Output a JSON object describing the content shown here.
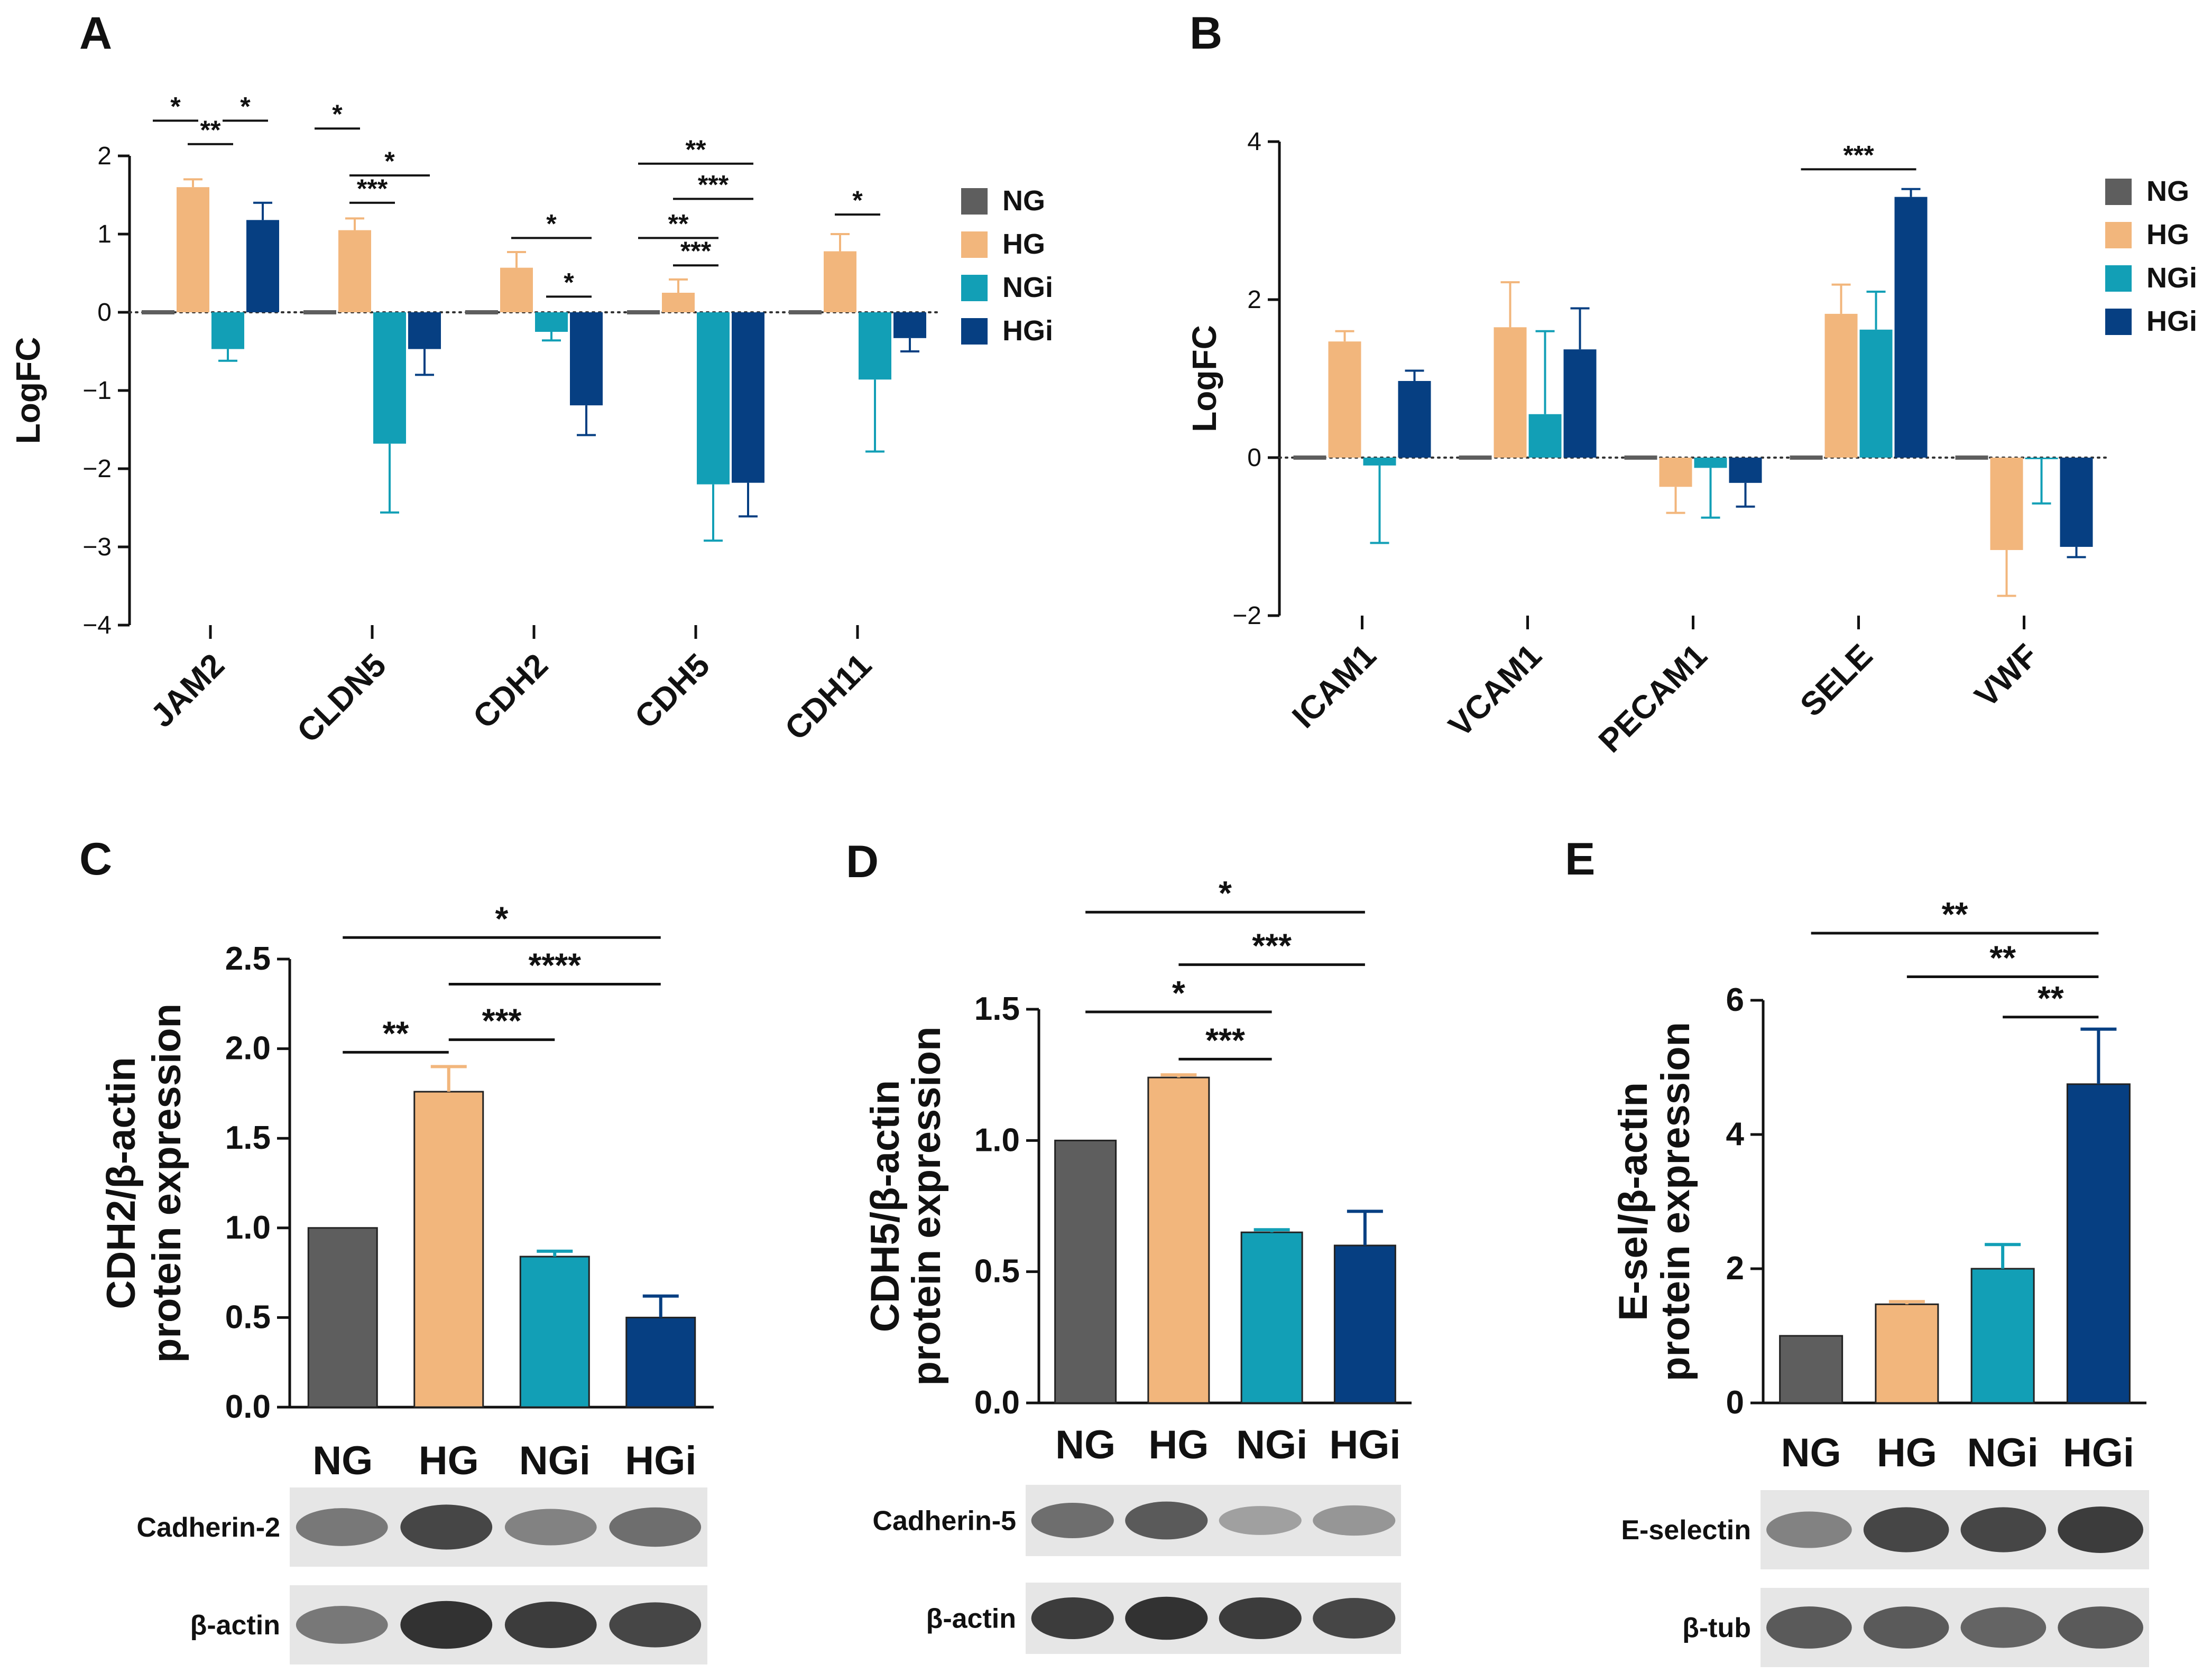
{
  "colors": {
    "NG": "#5e5e5e",
    "HG": "#f2b67c",
    "NGi": "#129fb6",
    "HGi": "#063f82"
  },
  "panels": {
    "A": {
      "letter": "A",
      "chart_data": {
        "type": "bar",
        "ylabel": "LogFC",
        "ylim": [
          -4,
          2
        ],
        "yticks": [
          2,
          1,
          0,
          -1,
          -2,
          -3,
          -4
        ],
        "yticklabels": [
          "2",
          "1",
          "0",
          "−1",
          "−2",
          "−3",
          "−4"
        ],
        "categories": [
          "JAM2",
          "CLDN5",
          "CDH2",
          "CDH5",
          "CDH11"
        ],
        "legend_position": "right",
        "series": [
          {
            "name": "NG",
            "values": [
              0,
              0,
              0,
              0,
              0
            ],
            "errors": [
              0,
              0,
              0,
              0,
              0
            ]
          },
          {
            "name": "HG",
            "values": [
              1.6,
              1.05,
              0.57,
              0.25,
              0.78
            ],
            "errors": [
              0.1,
              0.15,
              0.2,
              0.17,
              0.22
            ]
          },
          {
            "name": "NGi",
            "values": [
              -0.47,
              -1.68,
              -0.25,
              -2.2,
              -0.86
            ],
            "errors": [
              0.15,
              0.88,
              0.11,
              0.72,
              0.92
            ]
          },
          {
            "name": "HGi",
            "values": [
              1.18,
              -0.47,
              -1.19,
              -2.18,
              -0.33
            ],
            "errors": [
              0.22,
              0.33,
              0.38,
              0.43,
              0.17
            ]
          }
        ],
        "significance": [
          {
            "cat": 0,
            "from": 0,
            "to": 1,
            "label": "*",
            "y": 2.45
          },
          {
            "cat": 0,
            "from": 1,
            "to": 2,
            "label": "**",
            "y": 2.15
          },
          {
            "cat": 0,
            "from": 2,
            "to": 3,
            "label": "*",
            "y": 2.45
          },
          {
            "cat": 1,
            "from": 0,
            "to": 1,
            "label": "*",
            "y": 2.35
          },
          {
            "cat": 1,
            "from": 1,
            "to": 3,
            "label": "*",
            "y": 1.75
          },
          {
            "cat": 1,
            "from": 1,
            "to": 2,
            "label": "***",
            "y": 1.4
          },
          {
            "cat": 2,
            "from": 1,
            "to": 3,
            "label": "*",
            "y": 0.95
          },
          {
            "cat": 2,
            "from": 2,
            "to": 3,
            "label": "*",
            "y": 0.2
          },
          {
            "cat": 3,
            "from": 0,
            "to": 3,
            "label": "**",
            "y": 1.9
          },
          {
            "cat": 3,
            "from": 1,
            "to": 3,
            "label": "***",
            "y": 1.45
          },
          {
            "cat": 3,
            "from": 0,
            "to": 2,
            "label": "**",
            "y": 0.95
          },
          {
            "cat": 3,
            "from": 1,
            "to": 2,
            "label": "***",
            "y": 0.6
          },
          {
            "cat": 4,
            "from": 1,
            "to": 2,
            "label": "*",
            "y": 1.25
          }
        ]
      }
    },
    "B": {
      "letter": "B",
      "chart_data": {
        "type": "bar",
        "ylabel": "LogFC",
        "ylim": [
          -2,
          4
        ],
        "yticks": [
          4,
          2,
          0,
          -2
        ],
        "yticklabels": [
          "4",
          "2",
          "0",
          "−2"
        ],
        "categories": [
          "ICAM1",
          "VCAM1",
          "PECAM1",
          "SELE",
          "VWF"
        ],
        "legend_position": "right",
        "series": [
          {
            "name": "NG",
            "values": [
              0,
              0,
              0,
              0,
              0
            ],
            "errors": [
              0,
              0,
              0,
              0,
              0
            ]
          },
          {
            "name": "HG",
            "values": [
              1.47,
              1.65,
              -0.37,
              1.82,
              -1.17
            ],
            "errors": [
              0.13,
              0.57,
              0.33,
              0.37,
              0.58
            ]
          },
          {
            "name": "NGi",
            "values": [
              -0.1,
              0.55,
              -0.13,
              1.62,
              -0.02
            ],
            "errors": [
              0.98,
              1.05,
              0.63,
              0.48,
              0.56
            ]
          },
          {
            "name": "HGi",
            "values": [
              0.97,
              1.37,
              -0.32,
              3.3,
              -1.13
            ],
            "errors": [
              0.13,
              0.52,
              0.3,
              0.1,
              0.13
            ]
          }
        ],
        "significance": [
          {
            "cat": 3,
            "from": 0,
            "to": 3,
            "label": "***",
            "y": 3.65
          }
        ]
      }
    },
    "C": {
      "letter": "C",
      "chart_data": {
        "type": "bar",
        "ylabel": [
          "CDH2/β-actin",
          "protein expression"
        ],
        "ylim": [
          0,
          2.5
        ],
        "yticks": [
          2.5,
          2.0,
          1.5,
          1.0,
          0.5,
          0.0
        ],
        "yticklabels": [
          "2.5",
          "2.0",
          "1.5",
          "1.0",
          "0.5",
          "0.0"
        ],
        "categories": [
          "NG",
          "HG",
          "NGi",
          "HGi"
        ],
        "values": [
          1.0,
          1.76,
          0.84,
          0.5
        ],
        "errors": [
          0,
          0.14,
          0.03,
          0.12
        ],
        "significance": [
          {
            "from": 0,
            "to": 3,
            "label": "*",
            "y": 2.62
          },
          {
            "from": 1,
            "to": 3,
            "label": "****",
            "y": 2.36
          },
          {
            "from": 1,
            "to": 2,
            "label": "***",
            "y": 2.05
          },
          {
            "from": 0,
            "to": 1,
            "label": "**",
            "y": 1.98
          }
        ]
      },
      "blots": [
        "Cadherin-2",
        "β-actin"
      ]
    },
    "D": {
      "letter": "D",
      "chart_data": {
        "type": "bar",
        "ylabel": [
          "CDH5/β-actin",
          "protein expression"
        ],
        "ylim": [
          0,
          1.5
        ],
        "yticks": [
          1.5,
          1.0,
          0.5,
          0.0
        ],
        "yticklabels": [
          "1.5",
          "1.0",
          "0.5",
          "0.0"
        ],
        "categories": [
          "NG",
          "HG",
          "NGi",
          "HGi"
        ],
        "values": [
          1.0,
          1.24,
          0.65,
          0.6
        ],
        "errors": [
          0,
          0.01,
          0.01,
          0.13
        ],
        "significance": [
          {
            "from": 0,
            "to": 3,
            "label": "*",
            "y": 1.87
          },
          {
            "from": 1,
            "to": 3,
            "label": "***",
            "y": 1.67
          },
          {
            "from": 0,
            "to": 2,
            "label": "*",
            "y": 1.49
          },
          {
            "from": 1,
            "to": 2,
            "label": "***",
            "y": 1.31
          }
        ]
      },
      "blots": [
        "Cadherin-5",
        "β-actin"
      ]
    },
    "E": {
      "letter": "E",
      "chart_data": {
        "type": "bar",
        "ylabel": [
          "E-sel/β-actin",
          "protein expression"
        ],
        "ylim": [
          0,
          6
        ],
        "yticks": [
          6,
          4,
          2,
          0
        ],
        "yticklabels": [
          "6",
          "4",
          "2",
          "0"
        ],
        "categories": [
          "NG",
          "HG",
          "NGi",
          "HGi"
        ],
        "values": [
          1.0,
          1.47,
          2.0,
          4.75
        ],
        "errors": [
          0,
          0.04,
          0.36,
          0.82
        ],
        "significance": [
          {
            "from": 0,
            "to": 3,
            "label": "**",
            "y": 7.0
          },
          {
            "from": 1,
            "to": 3,
            "label": "**",
            "y": 6.35
          },
          {
            "from": 2,
            "to": 3,
            "label": "**",
            "y": 5.75
          }
        ]
      },
      "blots": [
        "E-selectin",
        "β-tub"
      ]
    }
  }
}
